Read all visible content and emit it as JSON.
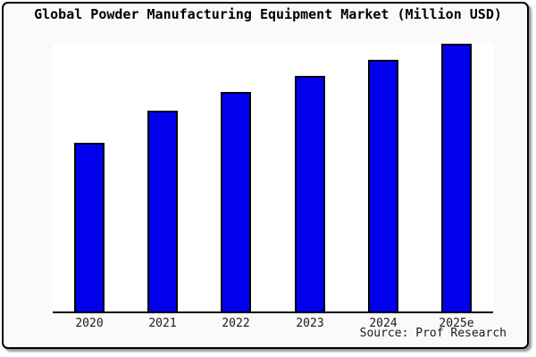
{
  "window": {
    "background_color": "#fafafa",
    "plot_background_color": "#ffffff",
    "frame_border_color": "#000000"
  },
  "title": "Global Powder Manufacturing Equipment Market (Million USD)",
  "source": "Source: Prof Research",
  "chart_data": {
    "type": "bar",
    "title": "Global Powder Manufacturing Equipment Market (Million USD)",
    "categories": [
      "2020",
      "2021",
      "2022",
      "2023",
      "2024",
      "2025e"
    ],
    "values": [
      63,
      75,
      82,
      88,
      94,
      100
    ],
    "xlabel": "",
    "ylabel": "",
    "ylim": [
      0,
      100
    ],
    "value_note": "no y-axis or data labels shown; values are relative bar heights (tallest bar = 100)",
    "bar_color": "#0000ee",
    "bar_border_color": "#000000",
    "grid": false,
    "legend": false,
    "y_axis_visible": false,
    "x_axis_visible": true,
    "annotations": [
      "Source: Prof Research"
    ]
  }
}
